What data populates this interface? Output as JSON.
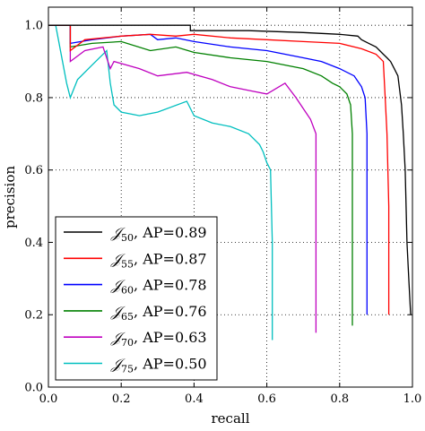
{
  "chart_data": {
    "type": "line",
    "title": "",
    "xlabel": "recall",
    "ylabel": "precision",
    "xlim": [
      0.0,
      1.0
    ],
    "ylim": [
      0.0,
      1.05
    ],
    "xticks": [
      "0.0",
      "0.2",
      "0.4",
      "0.6",
      "0.8",
      "1.0"
    ],
    "yticks": [
      "0.0",
      "0.2",
      "0.4",
      "0.6",
      "0.8",
      "1.0"
    ],
    "grid": "dotted",
    "legend_position": "lower-left",
    "series": [
      {
        "name": "𝒥50, AP=0.89",
        "symbol": "𝒥",
        "subscript": "50",
        "ap_label": ", AP=0.89",
        "color": "#000000",
        "points": [
          [
            0.0,
            1.0
          ],
          [
            0.39,
            1.0
          ],
          [
            0.39,
            0.985
          ],
          [
            0.55,
            0.985
          ],
          [
            0.7,
            0.98
          ],
          [
            0.8,
            0.975
          ],
          [
            0.85,
            0.97
          ],
          [
            0.86,
            0.96
          ],
          [
            0.88,
            0.95
          ],
          [
            0.9,
            0.94
          ],
          [
            0.91,
            0.93
          ],
          [
            0.92,
            0.92
          ],
          [
            0.93,
            0.91
          ],
          [
            0.94,
            0.9
          ],
          [
            0.95,
            0.88
          ],
          [
            0.96,
            0.86
          ],
          [
            0.965,
            0.82
          ],
          [
            0.97,
            0.78
          ],
          [
            0.975,
            0.7
          ],
          [
            0.98,
            0.6
          ],
          [
            0.985,
            0.4
          ],
          [
            0.99,
            0.3
          ],
          [
            0.995,
            0.2
          ]
        ]
      },
      {
        "name": "𝒥55, AP=0.87",
        "symbol": "𝒥",
        "subscript": "55",
        "ap_label": ", AP=0.87",
        "color": "#ff0000",
        "points": [
          [
            0.0,
            1.0
          ],
          [
            0.06,
            1.0
          ],
          [
            0.06,
            0.93
          ],
          [
            0.1,
            0.96
          ],
          [
            0.2,
            0.97
          ],
          [
            0.28,
            0.975
          ],
          [
            0.35,
            0.97
          ],
          [
            0.4,
            0.975
          ],
          [
            0.5,
            0.965
          ],
          [
            0.6,
            0.96
          ],
          [
            0.7,
            0.955
          ],
          [
            0.8,
            0.95
          ],
          [
            0.86,
            0.935
          ],
          [
            0.9,
            0.92
          ],
          [
            0.92,
            0.9
          ],
          [
            0.925,
            0.8
          ],
          [
            0.93,
            0.7
          ],
          [
            0.935,
            0.5
          ],
          [
            0.935,
            0.2
          ]
        ]
      },
      {
        "name": "𝒥60, AP=0.78",
        "symbol": "𝒥",
        "subscript": "60",
        "ap_label": ", AP=0.78",
        "color": "#0000ff",
        "points": [
          [
            0.0,
            1.0
          ],
          [
            0.06,
            1.0
          ],
          [
            0.06,
            0.95
          ],
          [
            0.12,
            0.96
          ],
          [
            0.2,
            0.97
          ],
          [
            0.28,
            0.975
          ],
          [
            0.3,
            0.96
          ],
          [
            0.35,
            0.965
          ],
          [
            0.4,
            0.955
          ],
          [
            0.5,
            0.94
          ],
          [
            0.6,
            0.93
          ],
          [
            0.7,
            0.91
          ],
          [
            0.75,
            0.9
          ],
          [
            0.8,
            0.88
          ],
          [
            0.84,
            0.86
          ],
          [
            0.86,
            0.83
          ],
          [
            0.87,
            0.8
          ],
          [
            0.875,
            0.7
          ],
          [
            0.875,
            0.2
          ]
        ]
      },
      {
        "name": "𝒥65, AP=0.76",
        "symbol": "𝒥",
        "subscript": "65",
        "ap_label": ", AP=0.76",
        "color": "#008000",
        "points": [
          [
            0.0,
            1.0
          ],
          [
            0.06,
            1.0
          ],
          [
            0.06,
            0.94
          ],
          [
            0.12,
            0.95
          ],
          [
            0.2,
            0.955
          ],
          [
            0.28,
            0.93
          ],
          [
            0.35,
            0.94
          ],
          [
            0.4,
            0.925
          ],
          [
            0.5,
            0.91
          ],
          [
            0.6,
            0.9
          ],
          [
            0.7,
            0.88
          ],
          [
            0.75,
            0.86
          ],
          [
            0.78,
            0.84
          ],
          [
            0.8,
            0.83
          ],
          [
            0.82,
            0.81
          ],
          [
            0.83,
            0.78
          ],
          [
            0.835,
            0.7
          ],
          [
            0.835,
            0.17
          ]
        ]
      },
      {
        "name": "𝒥70, AP=0.63",
        "symbol": "𝒥",
        "subscript": "70",
        "ap_label": ", AP=0.63",
        "color": "#bf00bf",
        "points": [
          [
            0.0,
            1.0
          ],
          [
            0.06,
            1.0
          ],
          [
            0.06,
            0.9
          ],
          [
            0.1,
            0.93
          ],
          [
            0.15,
            0.94
          ],
          [
            0.17,
            0.88
          ],
          [
            0.18,
            0.9
          ],
          [
            0.25,
            0.88
          ],
          [
            0.3,
            0.86
          ],
          [
            0.38,
            0.87
          ],
          [
            0.45,
            0.85
          ],
          [
            0.5,
            0.83
          ],
          [
            0.55,
            0.82
          ],
          [
            0.6,
            0.81
          ],
          [
            0.65,
            0.84
          ],
          [
            0.68,
            0.8
          ],
          [
            0.7,
            0.77
          ],
          [
            0.72,
            0.74
          ],
          [
            0.735,
            0.7
          ],
          [
            0.735,
            0.15
          ]
        ]
      },
      {
        "name": "𝒥75, AP=0.50",
        "symbol": "𝒥",
        "subscript": "75",
        "ap_label": ", AP=0.50",
        "color": "#00bfbf",
        "points": [
          [
            0.0,
            1.0
          ],
          [
            0.02,
            1.0
          ],
          [
            0.05,
            0.84
          ],
          [
            0.06,
            0.8
          ],
          [
            0.08,
            0.85
          ],
          [
            0.12,
            0.89
          ],
          [
            0.16,
            0.93
          ],
          [
            0.17,
            0.84
          ],
          [
            0.18,
            0.78
          ],
          [
            0.2,
            0.76
          ],
          [
            0.25,
            0.75
          ],
          [
            0.3,
            0.76
          ],
          [
            0.38,
            0.79
          ],
          [
            0.4,
            0.75
          ],
          [
            0.45,
            0.73
          ],
          [
            0.5,
            0.72
          ],
          [
            0.55,
            0.7
          ],
          [
            0.58,
            0.67
          ],
          [
            0.59,
            0.65
          ],
          [
            0.6,
            0.62
          ],
          [
            0.61,
            0.6
          ],
          [
            0.615,
            0.4
          ],
          [
            0.615,
            0.13
          ]
        ]
      }
    ]
  }
}
